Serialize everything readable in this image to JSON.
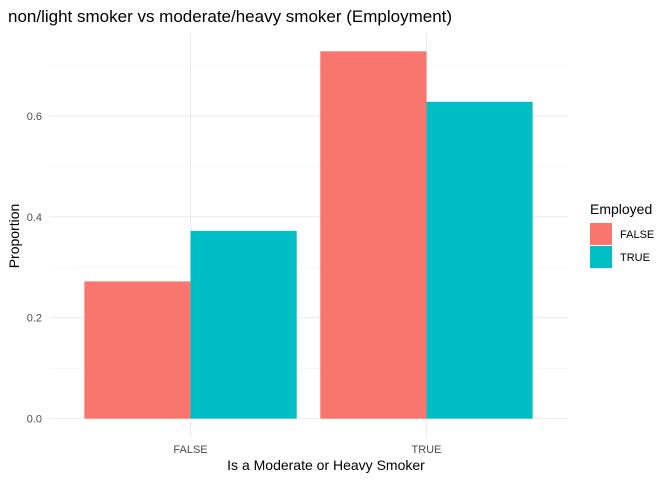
{
  "chart_data": {
    "type": "bar",
    "title": "non/light smoker vs moderate/heavy smoker (Employment)",
    "xlabel": "Is a Moderate or Heavy Smoker",
    "ylabel": "Proportion",
    "categories": [
      "FALSE",
      "TRUE"
    ],
    "series": [
      {
        "name": "FALSE",
        "color": "#F8766D",
        "values": [
          0.272,
          0.728
        ]
      },
      {
        "name": "TRUE",
        "color": "#00BFC4",
        "values": [
          0.372,
          0.628
        ]
      }
    ],
    "ylim": [
      0,
      0.728
    ],
    "yticks": [
      0,
      0.2,
      0.4,
      0.6
    ],
    "ytick_labels": [
      "0.0",
      "0.2",
      "0.4",
      "0.6"
    ],
    "grid": true,
    "legend": {
      "title": "Employed",
      "placement": "right"
    }
  }
}
